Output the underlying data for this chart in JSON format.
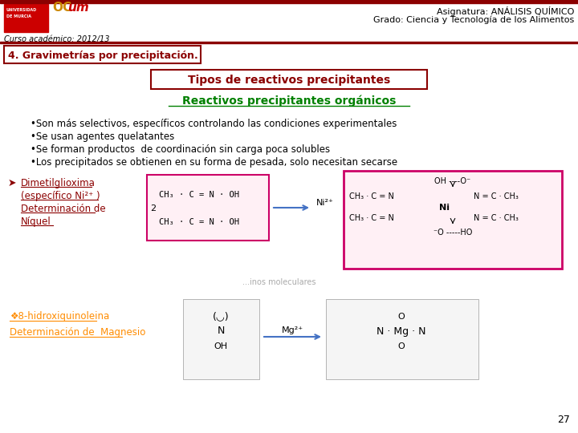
{
  "bg_color": "#ffffff",
  "header_right_line1": "Asignatura: ANÁLISIS QUÍMICO",
  "header_right_line2": "Grado: Ciencia y Tecnología de los Alimentos",
  "header_left": "Curso académico: 2012/13",
  "header_top_bar_color": "#8B0000",
  "slide_title": "4. Gravimetrías por precipitación.",
  "slide_title_box_color": "#8B0000",
  "section_title": "Tipos de reactivos precipitantes",
  "section_title_color": "#8B0000",
  "section_title_box_color": "#8B0000",
  "subsection_title": "Reactivos precipitantes orgánicos",
  "subsection_title_color": "#008000",
  "bullet_points": [
    "Son más selectivos, específicos controlando las condiciones experimentales",
    "Se usan agentes quelatantes",
    "Se forman productos  de coordinación sin carga poca solubles",
    "Los precipitados se obtienen en su forma de pesada, solo necesitan secarse"
  ],
  "left_link1_line1": "Dimetilglioxima",
  "left_link1_line2": "(específico Ni²⁺ )",
  "left_link1_line3": "Determinación de",
  "left_link1_line4": "Níquel",
  "left_link1_color": "#8B0000",
  "left_link2_line1": "❖8-hidroxiquinoleina",
  "left_link2_line2": "Determinación de  Magnesio",
  "left_link2_color": "#FF8C00",
  "ni2_label": "Ni²⁺",
  "mg2_label": "Mg²⁺",
  "page_number": "27",
  "formula_box_color": "#CC0066",
  "arrow_color": "#4472C4"
}
